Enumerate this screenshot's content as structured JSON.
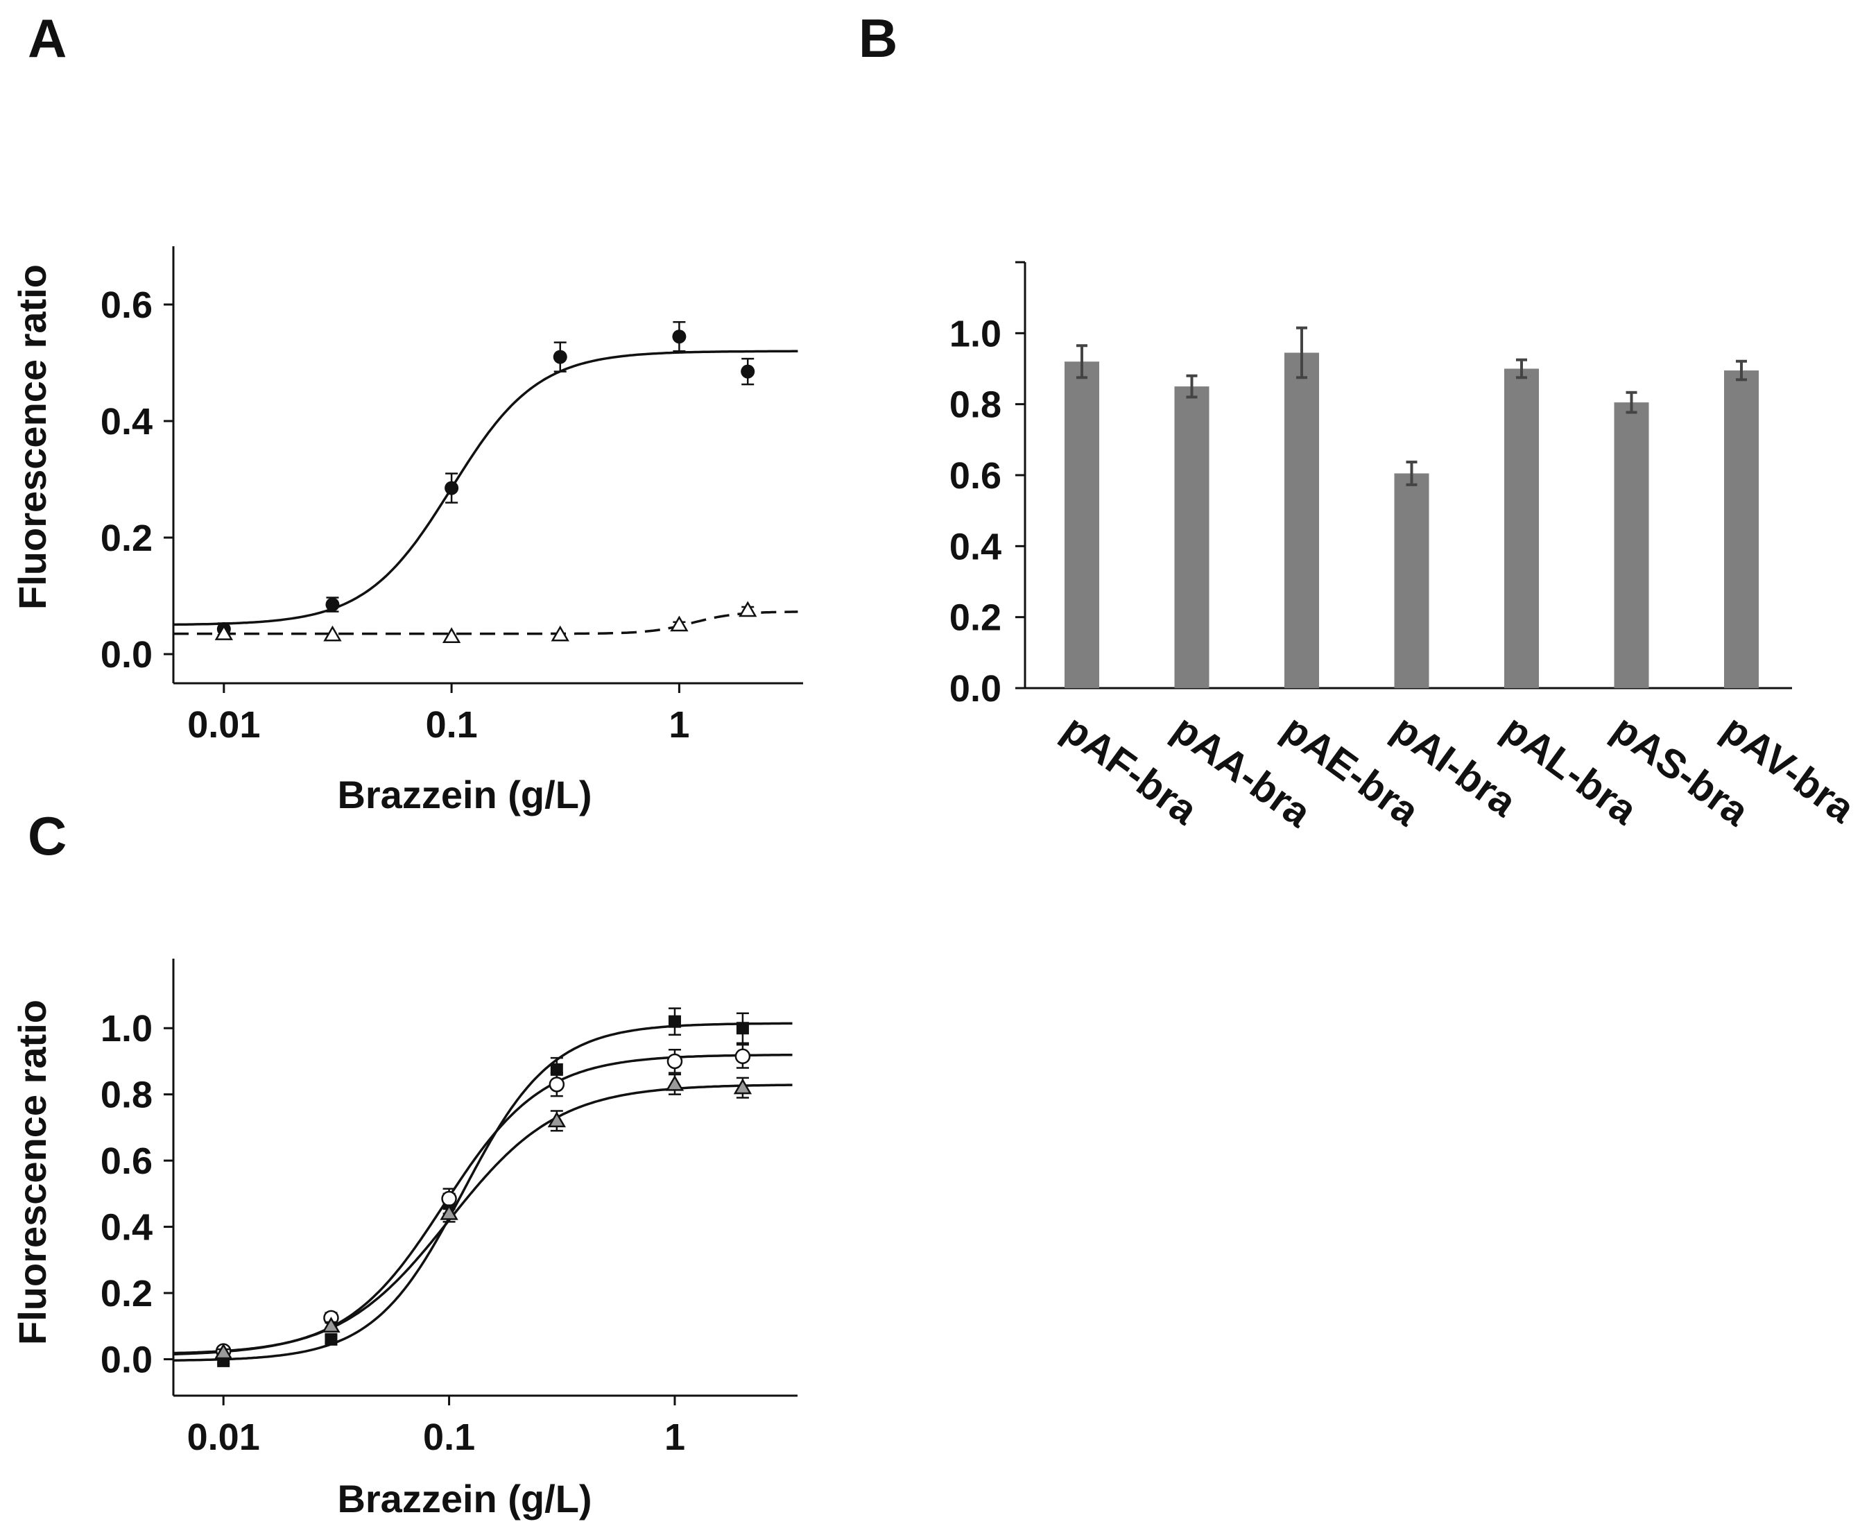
{
  "chart_data": [
    {
      "panel": "A",
      "type": "scatter",
      "xscale": "log",
      "xlabel": "Brazzein (g/L)",
      "ylabel": "Fluorescence ratio",
      "xlim": [
        0.006,
        3.5
      ],
      "ylim": [
        -0.05,
        0.7
      ],
      "xticks": [
        0.01,
        0.1,
        1
      ],
      "xtick_labels": [
        "0.01",
        "0.1",
        "1"
      ],
      "yticks": [
        0.0,
        0.2,
        0.4,
        0.6
      ],
      "ytick_labels": [
        "0.0",
        "0.2",
        "0.4",
        "0.6"
      ],
      "series": [
        {
          "name": "filled circles",
          "marker": "circle-filled",
          "line": "solid",
          "x": [
            0.01,
            0.03,
            0.1,
            0.3,
            1,
            2
          ],
          "y": [
            0.043,
            0.085,
            0.285,
            0.51,
            0.545,
            0.485
          ],
          "err": [
            0.01,
            0.012,
            0.025,
            0.025,
            0.025,
            0.022
          ],
          "fit": {
            "bottom": 0.05,
            "top": 0.52,
            "ec50": 0.1,
            "hill": 2.3
          }
        },
        {
          "name": "open triangles",
          "marker": "triangle-open",
          "line": "dashed",
          "x": [
            0.01,
            0.03,
            0.1,
            0.3,
            1,
            2
          ],
          "y": [
            0.035,
            0.033,
            0.03,
            0.033,
            0.05,
            0.075
          ],
          "err": [
            0,
            0,
            0,
            0,
            0.005,
            0.006
          ],
          "fit": {
            "bottom": 0.035,
            "top": 0.073,
            "ec50": 1.15,
            "hill": 4.5
          }
        }
      ]
    },
    {
      "panel": "B",
      "type": "bar",
      "categories": [
        "pAF-bra",
        "pAA-bra",
        "pAE-bra",
        "pAI-bra",
        "pAL-bra",
        "pAS-bra",
        "pAV-bra"
      ],
      "values": [
        0.92,
        0.85,
        0.945,
        0.605,
        0.9,
        0.805,
        0.895
      ],
      "err": [
        0.045,
        0.03,
        0.07,
        0.032,
        0.025,
        0.028,
        0.026
      ],
      "ylim": [
        0,
        1.2
      ],
      "yticks": [
        0.0,
        0.2,
        0.4,
        0.6,
        0.8,
        1.0
      ],
      "ytick_labels": [
        "0.0",
        "0.2",
        "0.4",
        "0.6",
        "0.8",
        "1.0"
      ],
      "bar_color": "#7f7f7f",
      "error_color": "#444444"
    },
    {
      "panel": "C",
      "type": "scatter",
      "xscale": "log",
      "xlabel": "Brazzein (g/L)",
      "ylabel": "Fluorescence ratio",
      "xlim": [
        0.006,
        3.5
      ],
      "ylim": [
        -0.11,
        1.21
      ],
      "xticks": [
        0.01,
        0.1,
        1
      ],
      "xtick_labels": [
        "0.01",
        "0.1",
        "1"
      ],
      "yticks": [
        0.0,
        0.2,
        0.4,
        0.6,
        0.8,
        1.0
      ],
      "ytick_labels": [
        "0.0",
        "0.2",
        "0.4",
        "0.6",
        "0.8",
        "1.0"
      ],
      "series": [
        {
          "name": "filled squares",
          "marker": "square-filled",
          "line": "solid",
          "x": [
            0.01,
            0.03,
            0.1,
            0.3,
            1,
            2
          ],
          "y": [
            -0.005,
            0.06,
            0.47,
            0.875,
            1.02,
            1.0
          ],
          "err": [
            0.008,
            0.01,
            0.03,
            0.035,
            0.04,
            0.045
          ],
          "fit": {
            "bottom": -0.005,
            "top": 1.015,
            "ec50": 0.115,
            "hill": 2.2
          }
        },
        {
          "name": "open circles",
          "marker": "circle-open",
          "line": "solid",
          "x": [
            0.01,
            0.03,
            0.1,
            0.3,
            1,
            2
          ],
          "y": [
            0.025,
            0.125,
            0.485,
            0.83,
            0.9,
            0.915
          ],
          "err": [
            0.012,
            0.015,
            0.03,
            0.035,
            0.035,
            0.035
          ],
          "fit": {
            "bottom": 0.015,
            "top": 0.92,
            "ec50": 0.095,
            "hill": 2.0
          }
        },
        {
          "name": "grey triangles",
          "marker": "triangle-grey",
          "line": "solid",
          "x": [
            0.01,
            0.03,
            0.1,
            0.3,
            1,
            2
          ],
          "y": [
            0.02,
            0.1,
            0.44,
            0.72,
            0.83,
            0.82
          ],
          "err": [
            0.01,
            0.012,
            0.025,
            0.03,
            0.03,
            0.03
          ],
          "fit": {
            "bottom": 0.01,
            "top": 0.83,
            "ec50": 0.1,
            "hill": 1.8
          }
        }
      ]
    }
  ]
}
